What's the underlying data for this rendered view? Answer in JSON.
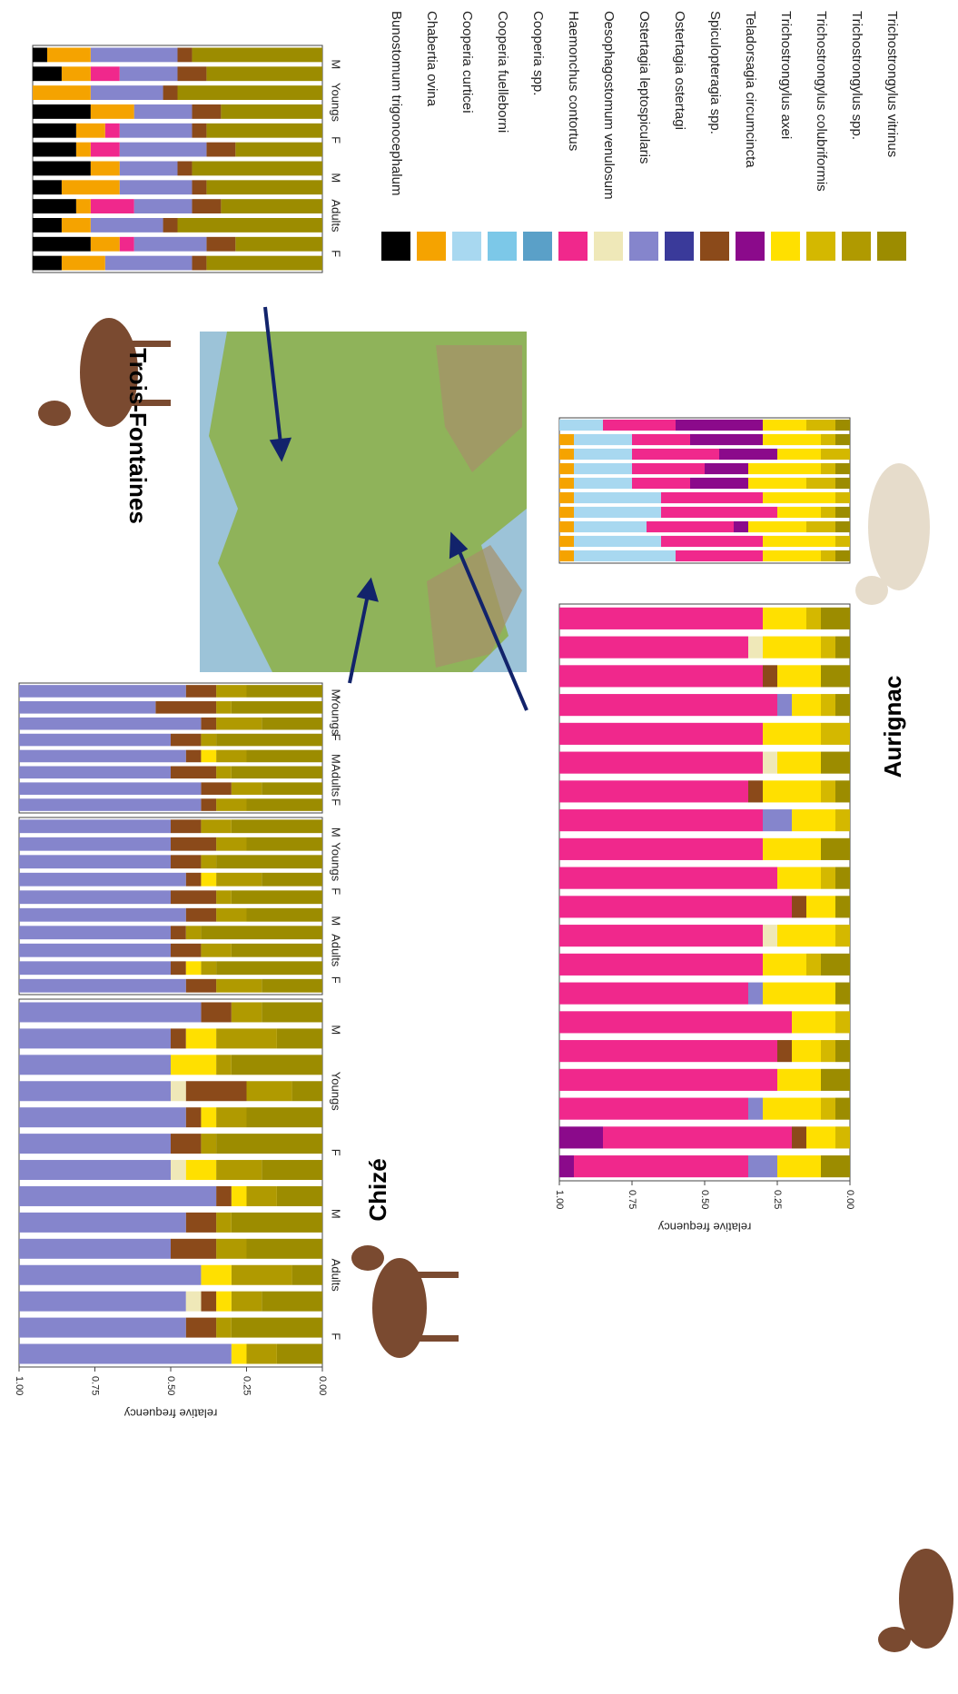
{
  "legend": [
    {
      "name": "Bunostomum  trigonocephalum",
      "color": "#000000"
    },
    {
      "name": "Chabertia  ovina",
      "color": "#f5a300"
    },
    {
      "name": "Cooperia  curticei",
      "color": "#a8d8f0"
    },
    {
      "name": "Cooperia  fuelleborni",
      "color": "#7cc8e8"
    },
    {
      "name": "Cooperia  spp.",
      "color": "#5aa0c8"
    },
    {
      "name": "Haemonchus  contortus",
      "color": "#f0288c"
    },
    {
      "name": "Oesophagostomum  venulosum",
      "color": "#efe8b8"
    },
    {
      "name": "Ostertagia  leptospicularis",
      "color": "#8585cc"
    },
    {
      "name": "Ostertagia  ostertagi",
      "color": "#3a3a9a"
    },
    {
      "name": "Spiculopteragia  spp.",
      "color": "#8b4a1a"
    },
    {
      "name": "Teladorsagia  circumcincta",
      "color": "#8b0a8b"
    },
    {
      "name": "Trichostrongylus  axei",
      "color": "#ffe000"
    },
    {
      "name": "Trichostrongylus  colubriformis",
      "color": "#d4b800"
    },
    {
      "name": "Trichostrongylus  spp.",
      "color": "#b09a00"
    },
    {
      "name": "Trichostrongylus  vitrinus",
      "color": "#9c8c00"
    }
  ],
  "chart_data": [
    {
      "type": "bar",
      "title": "Chizé",
      "ylabel": "relative frequency",
      "ylim": [
        0,
        1
      ],
      "yticks": [
        {
          "value": 0,
          "label": "0.00"
        },
        {
          "value": 0.25,
          "label": "0.25"
        },
        {
          "value": 0.5,
          "label": "0.50"
        },
        {
          "value": 0.75,
          "label": "0.75"
        },
        {
          "value": 1,
          "label": "1.00"
        }
      ],
      "group_labels": [
        "F",
        "Adults",
        "M",
        "F",
        "Youngs",
        "M"
      ],
      "categories": [
        null,
        null,
        null,
        null,
        null,
        null,
        null,
        null,
        null,
        null,
        null,
        null,
        null,
        null
      ],
      "series": [
        {
          "name": "Trichostrongylus  vitrinus",
          "color": "#9c8c00",
          "values": [
            0.2,
            0.15,
            0.3,
            0.1,
            0.25,
            0.35,
            0.2,
            0.15,
            0.3,
            0.25,
            0.1,
            0.2,
            0.3,
            0.15
          ]
        },
        {
          "name": "Trichostrongylus  spp.",
          "color": "#b09a00",
          "values": [
            0.1,
            0.2,
            0.05,
            0.15,
            0.1,
            0.05,
            0.15,
            0.1,
            0.05,
            0.1,
            0.2,
            0.1,
            0.05,
            0.1
          ]
        },
        {
          "name": "Trichostrongylus  axei",
          "color": "#ffe000",
          "values": [
            0,
            0.1,
            0.15,
            0,
            0.05,
            0,
            0.1,
            0.05,
            0,
            0,
            0.1,
            0.05,
            0,
            0.05
          ]
        },
        {
          "name": "Spiculopteragia  spp.",
          "color": "#8b4a1a",
          "values": [
            0.1,
            0.05,
            0,
            0.2,
            0.05,
            0.1,
            0,
            0.05,
            0.1,
            0.15,
            0,
            0.05,
            0.1,
            0
          ]
        },
        {
          "name": "Oesophagostomum  venulosum",
          "color": "#efe8b8",
          "values": [
            0,
            0,
            0,
            0.05,
            0,
            0,
            0.05,
            0,
            0,
            0,
            0,
            0.05,
            0,
            0
          ]
        },
        {
          "name": "Ostertagia  leptospicularis",
          "color": "#8585cc",
          "values": [
            0.6,
            0.5,
            0.5,
            0.5,
            0.55,
            0.5,
            0.5,
            0.65,
            0.55,
            0.5,
            0.6,
            0.55,
            0.55,
            0.7
          ]
        }
      ]
    },
    {
      "type": "bar",
      "ylim": [
        0,
        1
      ],
      "group_labels": [
        "F",
        "Adults",
        "M",
        "F",
        "Youngs",
        "M"
      ],
      "categories": [
        null,
        null,
        null,
        null,
        null,
        null,
        null,
        null,
        null,
        null
      ],
      "series": [
        {
          "name": "Trichostrongylus  vitrinus",
          "color": "#9c8c00",
          "values": [
            0.3,
            0.25,
            0.35,
            0.2,
            0.3,
            0.25,
            0.4,
            0.3,
            0.35,
            0.2
          ]
        },
        {
          "name": "Trichostrongylus  spp.",
          "color": "#b09a00",
          "values": [
            0.1,
            0.1,
            0.05,
            0.15,
            0.05,
            0.1,
            0.05,
            0.1,
            0.05,
            0.15
          ]
        },
        {
          "name": "Trichostrongylus  axei",
          "color": "#ffe000",
          "values": [
            0,
            0,
            0,
            0.05,
            0,
            0,
            0,
            0,
            0.05,
            0
          ]
        },
        {
          "name": "Spiculopteragia  spp.",
          "color": "#8b4a1a",
          "values": [
            0.1,
            0.15,
            0.1,
            0.05,
            0.15,
            0.1,
            0.05,
            0.1,
            0.05,
            0.1
          ]
        },
        {
          "name": "Oesophagostomum  venulosum",
          "color": "#efe8b8",
          "values": [
            0,
            0,
            0,
            0,
            0,
            0,
            0,
            0,
            0,
            0
          ]
        },
        {
          "name": "Ostertagia  leptospicularis",
          "color": "#8585cc",
          "values": [
            0.5,
            0.5,
            0.5,
            0.55,
            0.5,
            0.55,
            0.5,
            0.5,
            0.5,
            0.55
          ]
        }
      ]
    },
    {
      "type": "bar",
      "ylim": [
        0,
        1
      ],
      "group_labels": [
        "F",
        "Adults",
        "M",
        "F",
        "Youngs",
        "M"
      ],
      "categories": [
        null,
        null,
        null,
        null,
        null,
        null,
        null,
        null
      ],
      "series": [
        {
          "name": "Trichostrongylus  vitrinus",
          "color": "#9c8c00",
          "values": [
            0.25,
            0.3,
            0.2,
            0.35,
            0.25,
            0.3,
            0.2,
            0.25
          ]
        },
        {
          "name": "Trichostrongylus  spp.",
          "color": "#b09a00",
          "values": [
            0.1,
            0.05,
            0.15,
            0.05,
            0.1,
            0.05,
            0.1,
            0.1
          ]
        },
        {
          "name": "Trichostrongylus  axei",
          "color": "#ffe000",
          "values": [
            0,
            0,
            0,
            0,
            0.05,
            0,
            0,
            0
          ]
        },
        {
          "name": "Spiculopteragia  spp.",
          "color": "#8b4a1a",
          "values": [
            0.1,
            0.2,
            0.05,
            0.1,
            0.05,
            0.15,
            0.1,
            0.05
          ]
        },
        {
          "name": "Oesophagostomum  venulosum",
          "color": "#efe8b8",
          "values": [
            0,
            0,
            0,
            0,
            0,
            0,
            0,
            0
          ]
        },
        {
          "name": "Ostertagia  leptospicularis",
          "color": "#8585cc",
          "values": [
            0.55,
            0.45,
            0.6,
            0.5,
            0.55,
            0.5,
            0.6,
            0.6
          ]
        }
      ]
    },
    {
      "type": "bar",
      "title": "Trois-Fontaines",
      "ylim": [
        0,
        1
      ],
      "group_labels": [
        "F",
        "Adults",
        "M",
        "F",
        "Youngs",
        "M"
      ],
      "categories": [
        null,
        null,
        null,
        null,
        null,
        null,
        null,
        null,
        null,
        null,
        null,
        null
      ],
      "series": [
        {
          "name": "Trichostrongylus  vitrinus",
          "color": "#9c8c00",
          "values": [
            0.45,
            0.4,
            0.5,
            0.35,
            0.4,
            0.3,
            0.45,
            0.4,
            0.35,
            0.5,
            0.3,
            0.4
          ]
        },
        {
          "name": "Spiculopteragia  spp.",
          "color": "#8b4a1a",
          "values": [
            0.05,
            0.1,
            0.05,
            0.1,
            0.05,
            0.1,
            0.05,
            0.05,
            0.1,
            0.05,
            0.1,
            0.05
          ]
        },
        {
          "name": "Ostertagia  leptospicularis",
          "color": "#8585cc",
          "values": [
            0.3,
            0.2,
            0.25,
            0.2,
            0.25,
            0.3,
            0.2,
            0.25,
            0.2,
            0.25,
            0.25,
            0.3
          ]
        },
        {
          "name": "Haemonchus  contortus",
          "color": "#f0288c",
          "values": [
            0,
            0.1,
            0,
            0,
            0.05,
            0.1,
            0,
            0,
            0.15,
            0,
            0.05,
            0
          ]
        },
        {
          "name": "Chabertia  ovina",
          "color": "#f5a300",
          "values": [
            0.15,
            0.1,
            0.2,
            0.15,
            0.1,
            0.05,
            0.1,
            0.2,
            0.05,
            0.1,
            0.1,
            0.15
          ]
        },
        {
          "name": "Bunostomum  trigonocephalum",
          "color": "#000000",
          "values": [
            0.05,
            0.1,
            0,
            0.2,
            0.15,
            0.15,
            0.2,
            0.1,
            0.15,
            0.1,
            0.2,
            0.1
          ]
        }
      ]
    },
    {
      "type": "bar",
      "title": "Aurignac",
      "ylabel": "relative frequency",
      "ylim": [
        0,
        1
      ],
      "yticks": [
        {
          "value": 0,
          "label": "0.00"
        },
        {
          "value": 0.25,
          "label": "0.25"
        },
        {
          "value": 0.5,
          "label": "0.50"
        },
        {
          "value": 0.75,
          "label": "0.75"
        },
        {
          "value": 1,
          "label": "1.00"
        }
      ],
      "categories": [
        null,
        null,
        null,
        null,
        null,
        null,
        null,
        null,
        null,
        null,
        null,
        null,
        null,
        null,
        null,
        null,
        null,
        null,
        null,
        null
      ],
      "series": [
        {
          "name": "Trichostrongylus  vitrinus",
          "color": "#9c8c00",
          "values": [
            0.1,
            0.05,
            0.1,
            0.05,
            0,
            0.1,
            0.05,
            0,
            0.1,
            0.05,
            0.05,
            0,
            0.1,
            0.05,
            0,
            0.05,
            0.1,
            0.05,
            0,
            0.1
          ]
        },
        {
          "name": "Trichostrongylus  colubriformis",
          "color": "#d4b800",
          "values": [
            0.05,
            0.05,
            0,
            0.05,
            0.1,
            0,
            0.05,
            0.05,
            0,
            0.05,
            0,
            0.05,
            0.05,
            0,
            0.05,
            0.05,
            0,
            0.05,
            0.05,
            0
          ]
        },
        {
          "name": "Trichostrongylus  axei",
          "color": "#ffe000",
          "values": [
            0.15,
            0.2,
            0.15,
            0.1,
            0.2,
            0.15,
            0.2,
            0.15,
            0.2,
            0.15,
            0.1,
            0.2,
            0.15,
            0.25,
            0.15,
            0.1,
            0.15,
            0.2,
            0.1,
            0.15
          ]
        },
        {
          "name": "Spiculopteragia  spp.",
          "color": "#8b4a1a",
          "values": [
            0,
            0,
            0.05,
            0,
            0,
            0,
            0.05,
            0,
            0,
            0,
            0.05,
            0,
            0,
            0,
            0,
            0.05,
            0,
            0,
            0.05,
            0
          ]
        },
        {
          "name": "Oesophagostomum  venulosum",
          "color": "#efe8b8",
          "values": [
            0,
            0.05,
            0,
            0,
            0,
            0.05,
            0,
            0,
            0,
            0,
            0,
            0.05,
            0,
            0,
            0,
            0,
            0,
            0,
            0,
            0
          ]
        },
        {
          "name": "Ostertagia  leptospicularis",
          "color": "#8585cc",
          "values": [
            0,
            0,
            0,
            0.05,
            0,
            0,
            0,
            0.1,
            0,
            0,
            0,
            0,
            0,
            0.05,
            0,
            0,
            0,
            0.05,
            0,
            0.1
          ]
        },
        {
          "name": "Haemonchus  contortus",
          "color": "#f0288c",
          "values": [
            0.7,
            0.65,
            0.7,
            0.75,
            0.7,
            0.7,
            0.65,
            0.7,
            0.7,
            0.75,
            0.8,
            0.7,
            0.7,
            0.65,
            0.8,
            0.75,
            0.75,
            0.65,
            0.65,
            0.6
          ]
        },
        {
          "name": "Teladorsagia  circumcincta",
          "color": "#8b0a8b",
          "values": [
            0,
            0,
            0,
            0,
            0,
            0,
            0,
            0,
            0,
            0,
            0,
            0,
            0,
            0,
            0,
            0,
            0,
            0,
            0.15,
            0.05
          ]
        }
      ]
    },
    {
      "type": "bar",
      "ylim": [
        0,
        1
      ],
      "categories": [
        null,
        null,
        null,
        null,
        null,
        null,
        null,
        null,
        null,
        null
      ],
      "series": [
        {
          "name": "Trichostrongylus  vitrinus",
          "color": "#9c8c00",
          "values": [
            0.05,
            0.05,
            0,
            0.05,
            0.05,
            0,
            0.05,
            0.05,
            0,
            0.05
          ]
        },
        {
          "name": "Trichostrongylus  colubriformis",
          "color": "#d4b800",
          "values": [
            0.1,
            0.05,
            0.1,
            0.05,
            0.1,
            0.05,
            0.05,
            0.1,
            0.05,
            0.05
          ]
        },
        {
          "name": "Trichostrongylus  axei",
          "color": "#ffe000",
          "values": [
            0.15,
            0.2,
            0.15,
            0.25,
            0.2,
            0.25,
            0.15,
            0.2,
            0.25,
            0.2
          ]
        },
        {
          "name": "Teladorsagia  circumcincta",
          "color": "#8b0a8b",
          "values": [
            0.3,
            0.25,
            0.2,
            0.15,
            0.2,
            0,
            0,
            0.05,
            0,
            0
          ]
        },
        {
          "name": "Haemonchus  contortus",
          "color": "#f0288c",
          "values": [
            0.25,
            0.2,
            0.3,
            0.25,
            0.2,
            0.35,
            0.4,
            0.3,
            0.35,
            0.3
          ]
        },
        {
          "name": "Cooperia  curticei",
          "color": "#a8d8f0",
          "values": [
            0.15,
            0.2,
            0.2,
            0.2,
            0.2,
            0.3,
            0.3,
            0.25,
            0.3,
            0.35
          ]
        },
        {
          "name": "Chabertia  ovina",
          "color": "#f5a300",
          "values": [
            0,
            0.05,
            0.05,
            0.05,
            0.05,
            0.05,
            0.05,
            0.05,
            0.05,
            0.05
          ]
        }
      ]
    }
  ]
}
